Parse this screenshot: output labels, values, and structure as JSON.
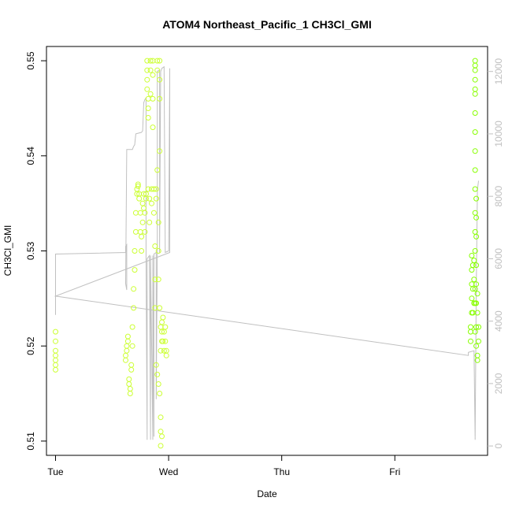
{
  "chart_data": {
    "type": "scatter",
    "title": "ATOM4 Northeast_Pacific_1 CH3Cl_GMI",
    "xlabel": "Date",
    "ylabel": "CH3Cl_GMI",
    "xlim": [
      -0.08,
      3.82
    ],
    "ylim": [
      0.5085,
      0.5515
    ],
    "y2lim": [
      -300,
      12800
    ],
    "x_ticks": [
      {
        "value": 0,
        "label": "Tue"
      },
      {
        "value": 1,
        "label": "Wed"
      },
      {
        "value": 2,
        "label": "Thu"
      },
      {
        "value": 3,
        "label": "Fri"
      }
    ],
    "y_ticks": [
      {
        "value": 0.51,
        "label": "0.51"
      },
      {
        "value": 0.52,
        "label": "0.52"
      },
      {
        "value": 0.53,
        "label": "0.53"
      },
      {
        "value": 0.54,
        "label": "0.54"
      },
      {
        "value": 0.55,
        "label": "0.55"
      }
    ],
    "y2_ticks": [
      {
        "value": 0,
        "label": "0"
      },
      {
        "value": 2000,
        "label": "2000"
      },
      {
        "value": 4000,
        "label": "4000"
      },
      {
        "value": 6000,
        "label": "6000"
      },
      {
        "value": 8000,
        "label": "8000"
      },
      {
        "value": 10000,
        "label": "10000"
      },
      {
        "value": 12000,
        "label": "12000"
      }
    ],
    "grid": false,
    "series": [
      {
        "marker": "open-circle",
        "color": "#ccff33",
        "color_late": "#88ff00",
        "points": [
          [
            0.0,
            0.5175
          ],
          [
            0.0,
            0.518
          ],
          [
            0.0,
            0.5185
          ],
          [
            0.0,
            0.519
          ],
          [
            0.0,
            0.5195
          ],
          [
            0.0,
            0.5205
          ],
          [
            0.0,
            0.5215
          ],
          [
            0.62,
            0.5185
          ],
          [
            0.62,
            0.519
          ],
          [
            0.63,
            0.5195
          ],
          [
            0.63,
            0.52
          ],
          [
            0.64,
            0.5205
          ],
          [
            0.64,
            0.521
          ],
          [
            0.65,
            0.516
          ],
          [
            0.65,
            0.5165
          ],
          [
            0.66,
            0.515
          ],
          [
            0.66,
            0.5155
          ],
          [
            0.67,
            0.5175
          ],
          [
            0.67,
            0.518
          ],
          [
            0.68,
            0.52
          ],
          [
            0.68,
            0.522
          ],
          [
            0.69,
            0.524
          ],
          [
            0.69,
            0.526
          ],
          [
            0.7,
            0.528
          ],
          [
            0.7,
            0.53
          ],
          [
            0.71,
            0.532
          ],
          [
            0.71,
            0.534
          ],
          [
            0.72,
            0.536
          ],
          [
            0.72,
            0.5365
          ],
          [
            0.73,
            0.537
          ],
          [
            0.73,
            0.5368
          ],
          [
            0.74,
            0.5355
          ],
          [
            0.74,
            0.536
          ],
          [
            0.75,
            0.534
          ],
          [
            0.75,
            0.532
          ],
          [
            0.76,
            0.53
          ],
          [
            0.76,
            0.5315
          ],
          [
            0.77,
            0.533
          ],
          [
            0.77,
            0.535
          ],
          [
            0.78,
            0.536
          ],
          [
            0.78,
            0.5345
          ],
          [
            0.79,
            0.532
          ],
          [
            0.79,
            0.534
          ],
          [
            0.8,
            0.536
          ],
          [
            0.8,
            0.5355
          ],
          [
            0.81,
            0.55
          ],
          [
            0.81,
            0.549
          ],
          [
            0.81,
            0.548
          ],
          [
            0.81,
            0.547
          ],
          [
            0.82,
            0.546
          ],
          [
            0.82,
            0.545
          ],
          [
            0.82,
            0.544
          ],
          [
            0.82,
            0.5365
          ],
          [
            0.83,
            0.5355
          ],
          [
            0.83,
            0.533
          ],
          [
            0.84,
            0.55
          ],
          [
            0.84,
            0.549
          ],
          [
            0.84,
            0.5465
          ],
          [
            0.85,
            0.5365
          ],
          [
            0.85,
            0.535
          ],
          [
            0.86,
            0.55
          ],
          [
            0.86,
            0.5485
          ],
          [
            0.86,
            0.546
          ],
          [
            0.86,
            0.543
          ],
          [
            0.87,
            0.5365
          ],
          [
            0.87,
            0.534
          ],
          [
            0.88,
            0.5305
          ],
          [
            0.88,
            0.527
          ],
          [
            0.88,
            0.524
          ],
          [
            0.89,
            0.5365
          ],
          [
            0.89,
            0.5355
          ],
          [
            0.89,
            0.518
          ],
          [
            0.9,
            0.55
          ],
          [
            0.9,
            0.549
          ],
          [
            0.9,
            0.5385
          ],
          [
            0.9,
            0.517
          ],
          [
            0.91,
            0.533
          ],
          [
            0.91,
            0.53
          ],
          [
            0.91,
            0.527
          ],
          [
            0.91,
            0.516
          ],
          [
            0.92,
            0.55
          ],
          [
            0.92,
            0.548
          ],
          [
            0.92,
            0.546
          ],
          [
            0.92,
            0.5405
          ],
          [
            0.92,
            0.524
          ],
          [
            0.92,
            0.515
          ],
          [
            0.93,
            0.522
          ],
          [
            0.93,
            0.5195
          ],
          [
            0.93,
            0.5125
          ],
          [
            0.93,
            0.511
          ],
          [
            0.94,
            0.5205
          ],
          [
            0.94,
            0.5215
          ],
          [
            0.94,
            0.5225
          ],
          [
            0.95,
            0.523
          ],
          [
            0.95,
            0.5205
          ],
          [
            0.96,
            0.5195
          ],
          [
            0.96,
            0.5215
          ],
          [
            0.97,
            0.522
          ],
          [
            0.97,
            0.5205
          ],
          [
            0.98,
            0.519
          ],
          [
            0.98,
            0.5195
          ],
          [
            0.93,
            0.5095
          ],
          [
            0.94,
            0.5105
          ],
          [
            3.67,
            0.5205
          ],
          [
            3.67,
            0.5215
          ],
          [
            3.67,
            0.522
          ],
          [
            3.68,
            0.5235
          ],
          [
            3.68,
            0.525
          ],
          [
            3.68,
            0.5265
          ],
          [
            3.68,
            0.528
          ],
          [
            3.68,
            0.5295
          ],
          [
            3.69,
            0.5235
          ],
          [
            3.69,
            0.526
          ],
          [
            3.69,
            0.5285
          ],
          [
            3.7,
            0.5245
          ],
          [
            3.7,
            0.527
          ],
          [
            3.7,
            0.529
          ],
          [
            3.71,
            0.5215
          ],
          [
            3.71,
            0.5245
          ],
          [
            3.71,
            0.526
          ],
          [
            3.71,
            0.55
          ],
          [
            3.71,
            0.5495
          ],
          [
            3.71,
            0.549
          ],
          [
            3.71,
            0.548
          ],
          [
            3.71,
            0.547
          ],
          [
            3.71,
            0.5465
          ],
          [
            3.71,
            0.5445
          ],
          [
            3.71,
            0.5425
          ],
          [
            3.71,
            0.5405
          ],
          [
            3.71,
            0.5385
          ],
          [
            3.71,
            0.5365
          ],
          [
            3.71,
            0.534
          ],
          [
            3.71,
            0.532
          ],
          [
            3.71,
            0.53
          ],
          [
            3.72,
            0.5285
          ],
          [
            3.72,
            0.5265
          ],
          [
            3.72,
            0.5245
          ],
          [
            3.72,
            0.522
          ],
          [
            3.72,
            0.52
          ],
          [
            3.73,
            0.519
          ],
          [
            3.73,
            0.5185
          ],
          [
            3.72,
            0.5355
          ],
          [
            3.72,
            0.5335
          ],
          [
            3.72,
            0.5315
          ],
          [
            3.73,
            0.5255
          ],
          [
            3.73,
            0.5235
          ],
          [
            3.74,
            0.5205
          ],
          [
            3.74,
            0.522
          ]
        ]
      }
    ],
    "secondary_line": {
      "color": "#c0c0c0",
      "points": [
        [
          0.0,
          4200
        ],
        [
          0.0,
          6150
        ],
        [
          0.62,
          6200
        ],
        [
          0.62,
          6400
        ],
        [
          0.63,
          6450
        ],
        [
          0.63,
          5000
        ],
        [
          0.62,
          5200
        ],
        [
          0.63,
          9500
        ],
        [
          0.68,
          9500
        ],
        [
          0.69,
          9600
        ],
        [
          0.7,
          9650
        ],
        [
          0.71,
          10000
        ],
        [
          0.76,
          10050
        ],
        [
          0.77,
          10100
        ],
        [
          0.78,
          11000
        ],
        [
          0.79,
          11100
        ],
        [
          0.8,
          11150
        ],
        [
          0.8,
          6050
        ],
        [
          0.81,
          200
        ],
        [
          0.81,
          6000
        ],
        [
          0.83,
          6100
        ],
        [
          0.84,
          200
        ],
        [
          0.84,
          6100
        ],
        [
          0.86,
          200
        ],
        [
          0.86,
          6100
        ],
        [
          0.87,
          300
        ],
        [
          0.87,
          6150
        ],
        [
          0.89,
          6200
        ],
        [
          0.89,
          1500
        ],
        [
          0.9,
          6150
        ],
        [
          0.9,
          12000
        ],
        [
          0.92,
          12050
        ],
        [
          0.92,
          6200
        ],
        [
          0.93,
          12000
        ],
        [
          0.94,
          12100
        ],
        [
          0.96,
          12150
        ],
        [
          0.97,
          6200
        ],
        [
          1.0,
          6250
        ],
        [
          1.01,
          12100
        ],
        [
          1.01,
          6200
        ],
        [
          0.0,
          4800
        ],
        [
          3.65,
          2900
        ],
        [
          3.65,
          3000
        ],
        [
          3.7,
          3050
        ],
        [
          3.71,
          200
        ],
        [
          3.72,
          5000
        ],
        [
          3.73,
          8200
        ],
        [
          3.74,
          8500
        ]
      ]
    }
  }
}
